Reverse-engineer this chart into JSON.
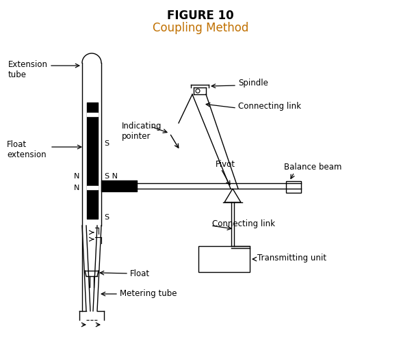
{
  "title_line1": "FIGURE 10",
  "title_line2": "Coupling Method",
  "title_color1": "#000000",
  "title_color2": "#c07000",
  "bg_color": "#ffffff",
  "labels": {
    "extension_tube": "Extension\ntube",
    "float_extension": "Float\nextension",
    "indicating_pointer": "Indicating\npointer",
    "spindle": "Spindle",
    "connecting_link_top": "Connecting link",
    "pivot": "Pivot",
    "balance_beam": "Balance beam",
    "connecting_link_bottom": "Connecting link",
    "transmitting_unit": "Transmitting unit",
    "float_label": "Float",
    "metering_tube": "Metering tube",
    "S_top": "S",
    "N_top1": "N",
    "N_top2": "N",
    "S_bot": "S",
    "SN_right": "S N"
  }
}
